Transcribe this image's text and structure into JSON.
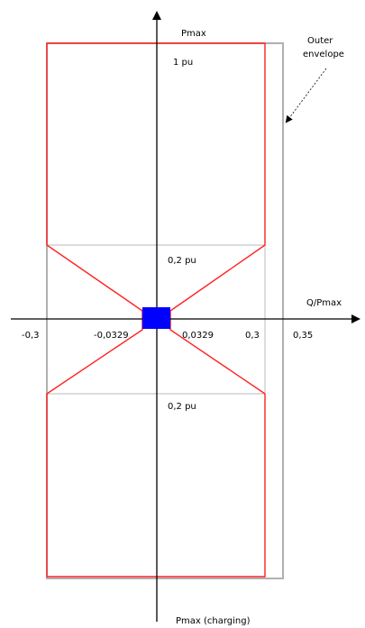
{
  "colors": {
    "axis": "#000000",
    "outer_envelope": "#b0b0b0",
    "inner_envelope": "#ff2020",
    "origin_square": "#0000ff",
    "annotation_arrow": "#000000"
  },
  "labels": {
    "y_axis_top": "Pmax",
    "y_axis_bottom": "Pmax (charging)",
    "x_axis": "Q/Pmax",
    "top_value": "1 pu",
    "upper_mid_value": "0,2 pu",
    "lower_mid_value": "0,2 pu",
    "outer_envelope_line1": "Outer",
    "outer_envelope_line2": "envelope"
  },
  "x_ticks": {
    "neg_0_3": "-0,3",
    "neg_0_0329": "-0,0329",
    "pos_0_0329": "0,0329",
    "pos_0_3": "0,3",
    "pos_0_35": "0,35"
  },
  "envelope_data": {
    "outer_q_limits": [
      -0.3,
      0.35
    ],
    "inner_q_limits": [
      -0.3,
      0.3
    ],
    "transition_p_pu": 0.2,
    "origin_q_band": [
      -0.0329,
      0.0329
    ],
    "p_range_pu": [
      -1,
      1
    ]
  }
}
